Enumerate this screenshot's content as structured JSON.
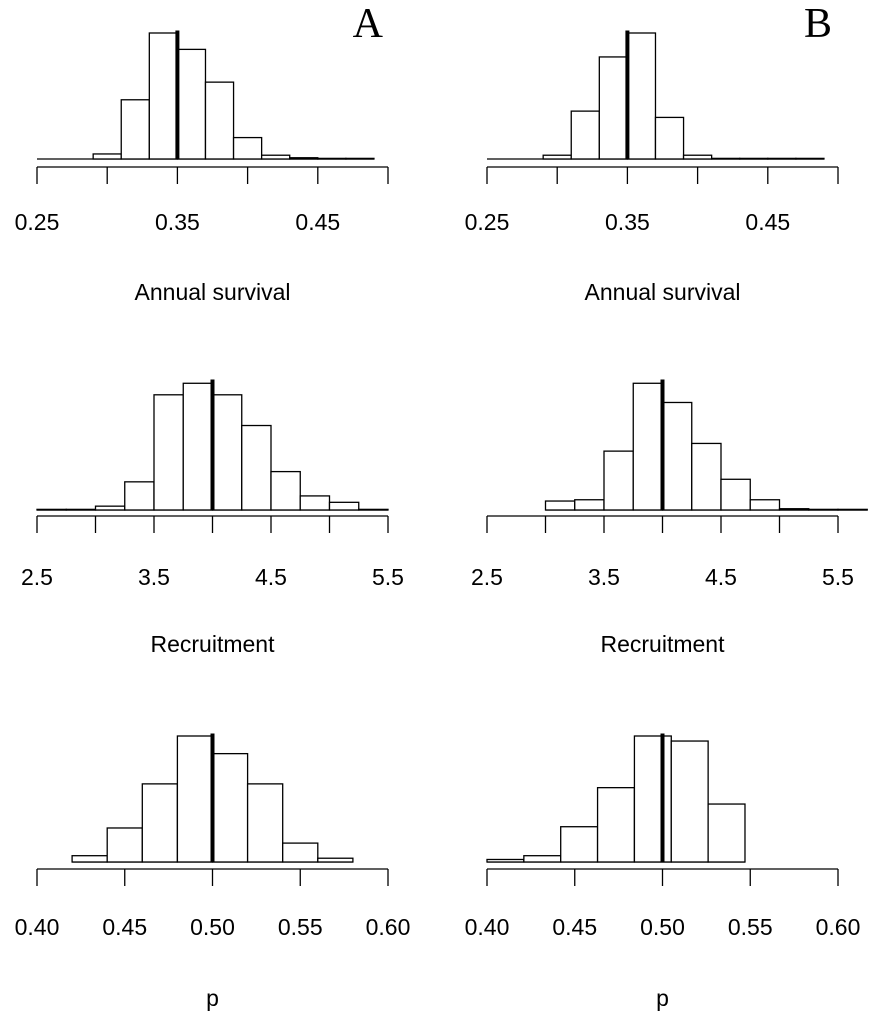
{
  "panel_labels": [
    "A",
    "B"
  ],
  "chart_data": [
    {
      "type": "bar",
      "panel": "A",
      "xlabel": "Annual survival",
      "xlim": [
        0.25,
        0.5
      ],
      "ticks": [
        0.25,
        0.3,
        0.35,
        0.4,
        0.45,
        0.5
      ],
      "tick_labels": [
        "0.25",
        "0.35",
        "0.45"
      ],
      "labeled_ticks": [
        0.25,
        0.35,
        0.45
      ],
      "bin_edges": [
        0.25,
        0.27,
        0.29,
        0.31,
        0.33,
        0.35,
        0.37,
        0.39,
        0.41,
        0.43,
        0.45,
        0.47,
        0.49
      ],
      "counts": [
        0,
        0,
        0.04,
        0.47,
        1.0,
        0.87,
        0.61,
        0.17,
        0.03,
        0.01,
        0.005,
        0.005
      ],
      "true_value": 0.35
    },
    {
      "type": "bar",
      "panel": "B",
      "xlabel": "Annual survival",
      "xlim": [
        0.25,
        0.5
      ],
      "ticks": [
        0.25,
        0.3,
        0.35,
        0.4,
        0.45,
        0.5
      ],
      "tick_labels": [
        "0.25",
        "0.35",
        "0.45"
      ],
      "labeled_ticks": [
        0.25,
        0.35,
        0.45
      ],
      "bin_edges": [
        0.25,
        0.27,
        0.29,
        0.31,
        0.33,
        0.35,
        0.37,
        0.39,
        0.41,
        0.43,
        0.45,
        0.47,
        0.49
      ],
      "counts": [
        0,
        0,
        0.03,
        0.38,
        0.81,
        1.0,
        0.33,
        0.03,
        0.005,
        0.005,
        0.005,
        0.005
      ],
      "true_value": 0.35
    },
    {
      "type": "bar",
      "panel": "A",
      "xlabel": "Recruitment",
      "xlim": [
        2.5,
        5.5
      ],
      "ticks": [
        2.5,
        3.0,
        3.5,
        4.0,
        4.5,
        5.0,
        5.5
      ],
      "tick_labels": [
        "2.5",
        "3.5",
        "4.5",
        "5.5"
      ],
      "labeled_ticks": [
        2.5,
        3.5,
        4.5,
        5.5
      ],
      "bin_edges": [
        2.5,
        2.75,
        3.0,
        3.25,
        3.5,
        3.75,
        4.0,
        4.25,
        4.5,
        4.75,
        5.0,
        5.25,
        5.5
      ],
      "counts": [
        0.005,
        0.005,
        0.03,
        0.22,
        0.9,
        0.99,
        0.9,
        0.66,
        0.3,
        0.11,
        0.06,
        0.005
      ],
      "true_value": 4.0
    },
    {
      "type": "bar",
      "panel": "B",
      "xlabel": "Recruitment",
      "xlim": [
        2.5,
        5.5
      ],
      "ticks": [
        2.5,
        3.0,
        3.5,
        4.0,
        4.5,
        5.0,
        5.5
      ],
      "tick_labels": [
        "2.5",
        "3.5",
        "4.5",
        "5.5"
      ],
      "labeled_ticks": [
        2.5,
        3.5,
        4.5,
        5.5
      ],
      "bin_edges": [
        3.0,
        3.25,
        3.5,
        3.75,
        4.0,
        4.25,
        4.5,
        4.75,
        5.0,
        5.25,
        5.5,
        5.75
      ],
      "counts": [
        0.07,
        0.08,
        0.46,
        0.99,
        0.84,
        0.52,
        0.24,
        0.08,
        0.01,
        0.005,
        0.005
      ],
      "true_value": 4.0
    },
    {
      "type": "bar",
      "panel": "A",
      "xlabel": "p",
      "xlim": [
        0.4,
        0.6
      ],
      "ticks": [
        0.4,
        0.45,
        0.5,
        0.55,
        0.6
      ],
      "tick_labels": [
        "0.40",
        "0.45",
        "0.50",
        "0.55",
        "0.60"
      ],
      "labeled_ticks": [
        0.4,
        0.45,
        0.5,
        0.55,
        0.6
      ],
      "bin_edges": [
        0.42,
        0.44,
        0.46,
        0.48,
        0.5,
        0.52,
        0.54,
        0.56,
        0.58
      ],
      "counts": [
        0.05,
        0.27,
        0.62,
        1.0,
        0.86,
        0.62,
        0.15,
        0.03
      ],
      "true_value": 0.5
    },
    {
      "type": "bar",
      "panel": "B",
      "xlabel": "p",
      "xlim": [
        0.4,
        0.6
      ],
      "ticks": [
        0.4,
        0.45,
        0.5,
        0.55,
        0.6
      ],
      "tick_labels": [
        "0.40",
        "0.45",
        "0.50",
        "0.55",
        "0.60"
      ],
      "labeled_ticks": [
        0.4,
        0.45,
        0.5,
        0.55,
        0.6
      ],
      "bin_edges": [
        0.4,
        0.421,
        0.442,
        0.463,
        0.484,
        0.505,
        0.526,
        0.547
      ],
      "counts": [
        0.02,
        0.05,
        0.28,
        0.59,
        1.0,
        0.96,
        0.46
      ],
      "true_value": 0.5
    }
  ]
}
